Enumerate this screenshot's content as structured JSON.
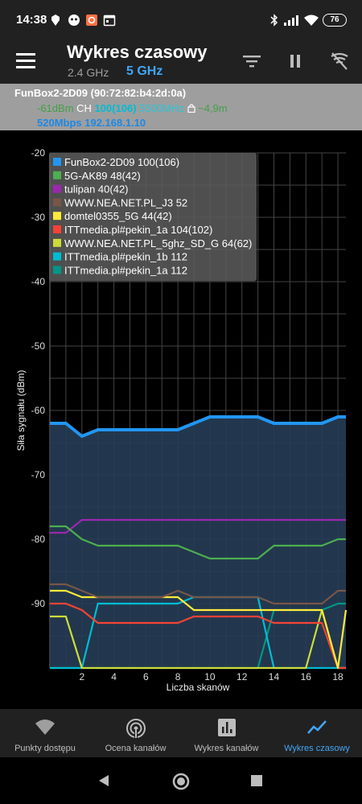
{
  "status_bar": {
    "time": "14:38",
    "battery": "76",
    "icons": [
      "carrier-icon",
      "notification-icon",
      "app-icon",
      "calendar-icon",
      "bluetooth-icon",
      "signal-icon",
      "wifi-icon",
      "battery-icon"
    ]
  },
  "app_bar": {
    "title": "Wykres czasowy",
    "band_24": "2.4 GHz",
    "band_5": "5 GHz",
    "actions": [
      "filter-icon",
      "pause-icon",
      "wifi-scan-icon"
    ]
  },
  "connection": {
    "ssid": "FunBox2-2D09 (90:72:82:b4:2d:0a)",
    "signal": "-61dBm",
    "ch_label": "CH",
    "channel": "100(106)",
    "frequency": "5500MHz",
    "distance": "~4,9m",
    "speed_ip": "520Mbps 192.168.1.10"
  },
  "chart_data": {
    "type": "line",
    "ylabel": "Siła sygnału (dBm)",
    "xlabel": "Liczba skanów",
    "ylim": [
      -100,
      -20
    ],
    "xlim": [
      0,
      18.5
    ],
    "y_ticks": [
      -20,
      -30,
      -40,
      -50,
      -60,
      -70,
      -80,
      -90
    ],
    "x_ticks": [
      2,
      4,
      6,
      8,
      10,
      12,
      14,
      16,
      18
    ],
    "grid": true,
    "legend_placement": "top-left",
    "series": [
      {
        "name": "FunBox2-2D09 100(106)",
        "color": "#2196f3",
        "fill": true,
        "x": [
          0,
          1,
          2,
          3,
          4,
          5,
          6,
          7,
          8,
          9,
          10,
          11,
          12,
          13,
          14,
          15,
          16,
          17,
          18,
          18.5
        ],
        "y": [
          -62,
          -62,
          -64,
          -63,
          -63,
          -63,
          -63,
          -63,
          -63,
          -62,
          -61,
          -61,
          -61,
          -61,
          -62,
          -62,
          -62,
          -62,
          -61,
          -61
        ]
      },
      {
        "name": "5G-AK89 48(42)",
        "color": "#4caf50",
        "x": [
          0,
          1,
          2,
          3,
          4,
          5,
          6,
          7,
          8,
          9,
          10,
          11,
          12,
          13,
          14,
          15,
          16,
          17,
          18,
          18.5
        ],
        "y": [
          -78,
          -78,
          -80,
          -81,
          -81,
          -81,
          -81,
          -81,
          -81,
          -82,
          -83,
          -83,
          -83,
          -83,
          -81,
          -81,
          -81,
          -81,
          -80,
          -80
        ]
      },
      {
        "name": "tulipan 40(42)",
        "color": "#9c27b0",
        "x": [
          0,
          1,
          2,
          3,
          4,
          5,
          6,
          7,
          8,
          9,
          10,
          11,
          12,
          13,
          14,
          15,
          16,
          17,
          18,
          18.5
        ],
        "y": [
          -79,
          -79,
          -77,
          -77,
          -77,
          -77,
          -77,
          -77,
          -77,
          -77,
          -77,
          -77,
          -77,
          -77,
          -77,
          -77,
          -77,
          -77,
          -77,
          -77
        ]
      },
      {
        "name": "WWW.NEA.NET.PL_J3 52",
        "color": "#795548",
        "x": [
          0,
          1,
          2,
          3,
          4,
          5,
          6,
          7,
          8,
          9,
          10,
          11,
          12,
          13,
          14,
          15,
          16,
          17,
          18,
          18.5
        ],
        "y": [
          -87,
          -87,
          -88,
          -89,
          -89,
          -89,
          -89,
          -89,
          -88,
          -89,
          -89,
          -89,
          -89,
          -89,
          -90,
          -90,
          -90,
          -90,
          -88,
          -88
        ]
      },
      {
        "name": "domtel0355_5G 44(42)",
        "color": "#ffeb3b",
        "x": [
          0,
          1,
          2,
          3,
          4,
          5,
          6,
          7,
          8,
          9,
          10,
          11,
          12,
          13,
          14,
          15,
          16,
          17,
          18,
          18.5
        ],
        "y": [
          -88,
          -88,
          -89,
          -89,
          -89,
          -89,
          -89,
          -89,
          -89,
          -91,
          -91,
          -91,
          -91,
          -91,
          -91,
          -91,
          -91,
          -91,
          -100,
          -91
        ]
      },
      {
        "name": "ITTmedia.pl#pekin_1a 104(102)",
        "color": "#f44336",
        "x": [
          0,
          1,
          2,
          3,
          4,
          5,
          6,
          7,
          8,
          9,
          10,
          11,
          12,
          13,
          14,
          15,
          16,
          17,
          18,
          18.5
        ],
        "y": [
          -90,
          -90,
          -91,
          -93,
          -93,
          -93,
          -93,
          -93,
          -93,
          -92,
          -92,
          -92,
          -92,
          -92,
          -93,
          -93,
          -93,
          -93,
          -100,
          -100
        ]
      },
      {
        "name": "WWW.NEA.NET.PL_5ghz_SD_G 64(62)",
        "color": "#cddc39",
        "x": [
          0,
          1,
          2,
          3,
          4,
          5,
          6,
          7,
          8,
          9,
          10,
          11,
          12,
          13,
          14,
          15,
          16,
          17,
          18,
          18.5
        ],
        "y": [
          -92,
          -92,
          -100,
          -100,
          -100,
          -100,
          -100,
          -100,
          -100,
          -100,
          -100,
          -100,
          -100,
          -100,
          -100,
          -100,
          -100,
          -91,
          -100,
          -100
        ]
      },
      {
        "name": "ITTmedia.pl#pekin_1b 112",
        "color": "#00bcd4",
        "x": [
          0,
          1,
          2,
          3,
          4,
          5,
          6,
          7,
          8,
          9,
          10,
          11,
          12,
          13,
          14,
          15,
          16,
          17,
          18,
          18.5
        ],
        "y": [
          -100,
          -100,
          -100,
          -90,
          -90,
          -90,
          -90,
          -90,
          -90,
          -89,
          -89,
          -89,
          -89,
          -89,
          -100,
          -100,
          -100,
          -100,
          -100,
          -100
        ]
      },
      {
        "name": "ITTmedia.pl#pekin_1a 112",
        "color": "#009688",
        "x": [
          0,
          1,
          2,
          3,
          4,
          5,
          6,
          7,
          8,
          9,
          10,
          11,
          12,
          13,
          14,
          15,
          16,
          17,
          18,
          18.5
        ],
        "y": [
          -100,
          -100,
          -100,
          -100,
          -100,
          -100,
          -100,
          -100,
          -100,
          -100,
          -100,
          -100,
          -100,
          -100,
          -91,
          -91,
          -91,
          -91,
          -90,
          -90
        ]
      }
    ]
  },
  "bottom_nav": [
    {
      "label": "Punkty dostępu",
      "icon": "wifi-icon",
      "active": false
    },
    {
      "label": "Ocena kanałów",
      "icon": "signal-rings-icon",
      "active": false
    },
    {
      "label": "Wykres kanałów",
      "icon": "bar-chart-icon",
      "active": false
    },
    {
      "label": "Wykres czasowy",
      "icon": "line-chart-icon",
      "active": true
    }
  ],
  "colors": {
    "accent": "#42a5f5",
    "status_bar_bg": "#212121",
    "info_bar_bg": "#9e9e9e",
    "signal_green": "#4caf50",
    "channel_cyan": "#00bcd4"
  }
}
